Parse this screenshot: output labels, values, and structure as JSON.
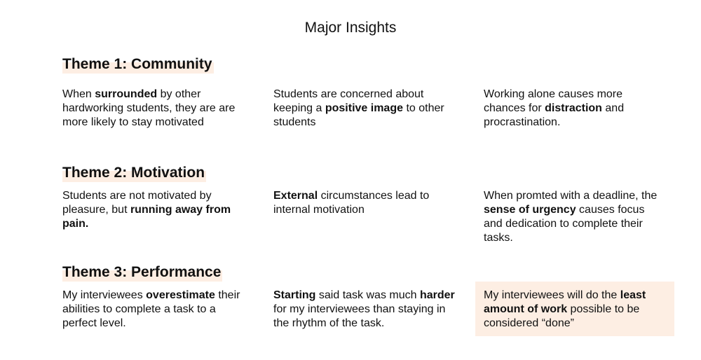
{
  "title": "Major Insights",
  "themes": [
    {
      "heading": "Theme 1: Community",
      "insights": [
        [
          "When ",
          "surrounded",
          " by other hardworking students, they are are more likely to stay motivated"
        ],
        [
          "Students are concerned about keeping a ",
          "positive image",
          " to other students"
        ],
        [
          "Working alone causes more chances for ",
          "distraction",
          " and procrastination."
        ]
      ]
    },
    {
      "heading": "Theme 2: Motivation",
      "insights": [
        [
          "Students are not motivated by pleasure, but ",
          "running away from pain.",
          ""
        ],
        [
          "",
          "External",
          " circumstances lead to internal motivation"
        ],
        [
          "When promted with a deadline, the ",
          "sense of urgency",
          " causes focus and dedication to complete their tasks."
        ]
      ]
    },
    {
      "heading": "Theme 3: Performance",
      "insights": [
        [
          "My interviewees ",
          "overestimate",
          " their abilities to complete a task to a perfect level."
        ],
        [
          "",
          "Starting",
          " said task was much ",
          "harder",
          " for my interviewees than staying in the rhythm of the task."
        ],
        [
          "My interviewees will do the ",
          "least amount of work",
          " possible to be considered “done”"
        ]
      ]
    }
  ],
  "colors": {
    "highlight": "#fdeee3",
    "text": "#111111"
  }
}
